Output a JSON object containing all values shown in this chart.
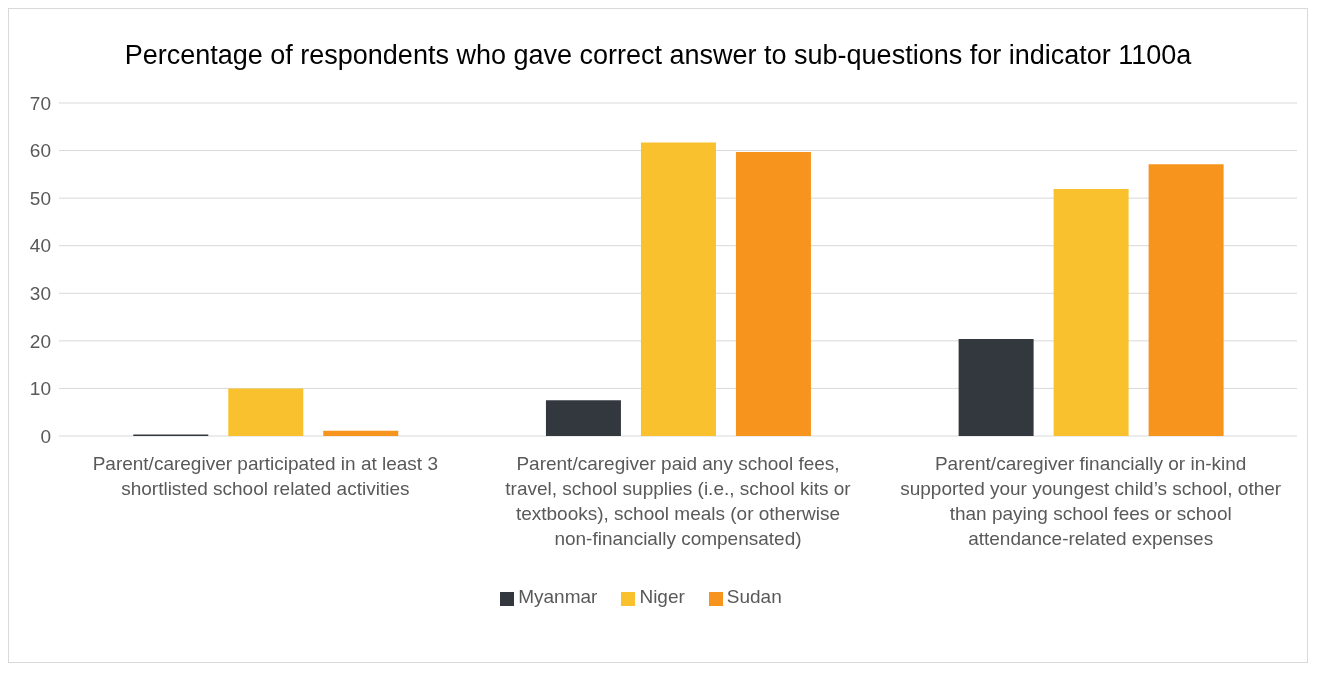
{
  "chart_data": {
    "type": "bar",
    "title": "Percentage of respondents who gave correct answer to sub-questions for indicator 1100a",
    "categories": [
      "Parent/caregiver participated in at least 3 shortlisted school related activities",
      "Parent/caregiver paid any school fees, travel, school supplies (i.e., school kits or textbooks), school meals (or otherwise non-financially compensated)",
      "Parent/caregiver financially or in-kind supported your youngest child’s school, other than paying school fees or school attendance-related expenses"
    ],
    "series": [
      {
        "name": "Myanmar",
        "color": "#33383f",
        "values": [
          0.3,
          7.5,
          20.4
        ]
      },
      {
        "name": "Niger",
        "color": "#f9c12e",
        "values": [
          10,
          61.7,
          51.9
        ]
      },
      {
        "name": "Sudan",
        "color": "#f7941d",
        "values": [
          1.1,
          59.7,
          57.1
        ]
      }
    ],
    "ylim": [
      0,
      70
    ],
    "yticks": [
      0,
      10,
      20,
      30,
      40,
      50,
      60,
      70
    ],
    "grid": "y",
    "legend": "bottom"
  }
}
